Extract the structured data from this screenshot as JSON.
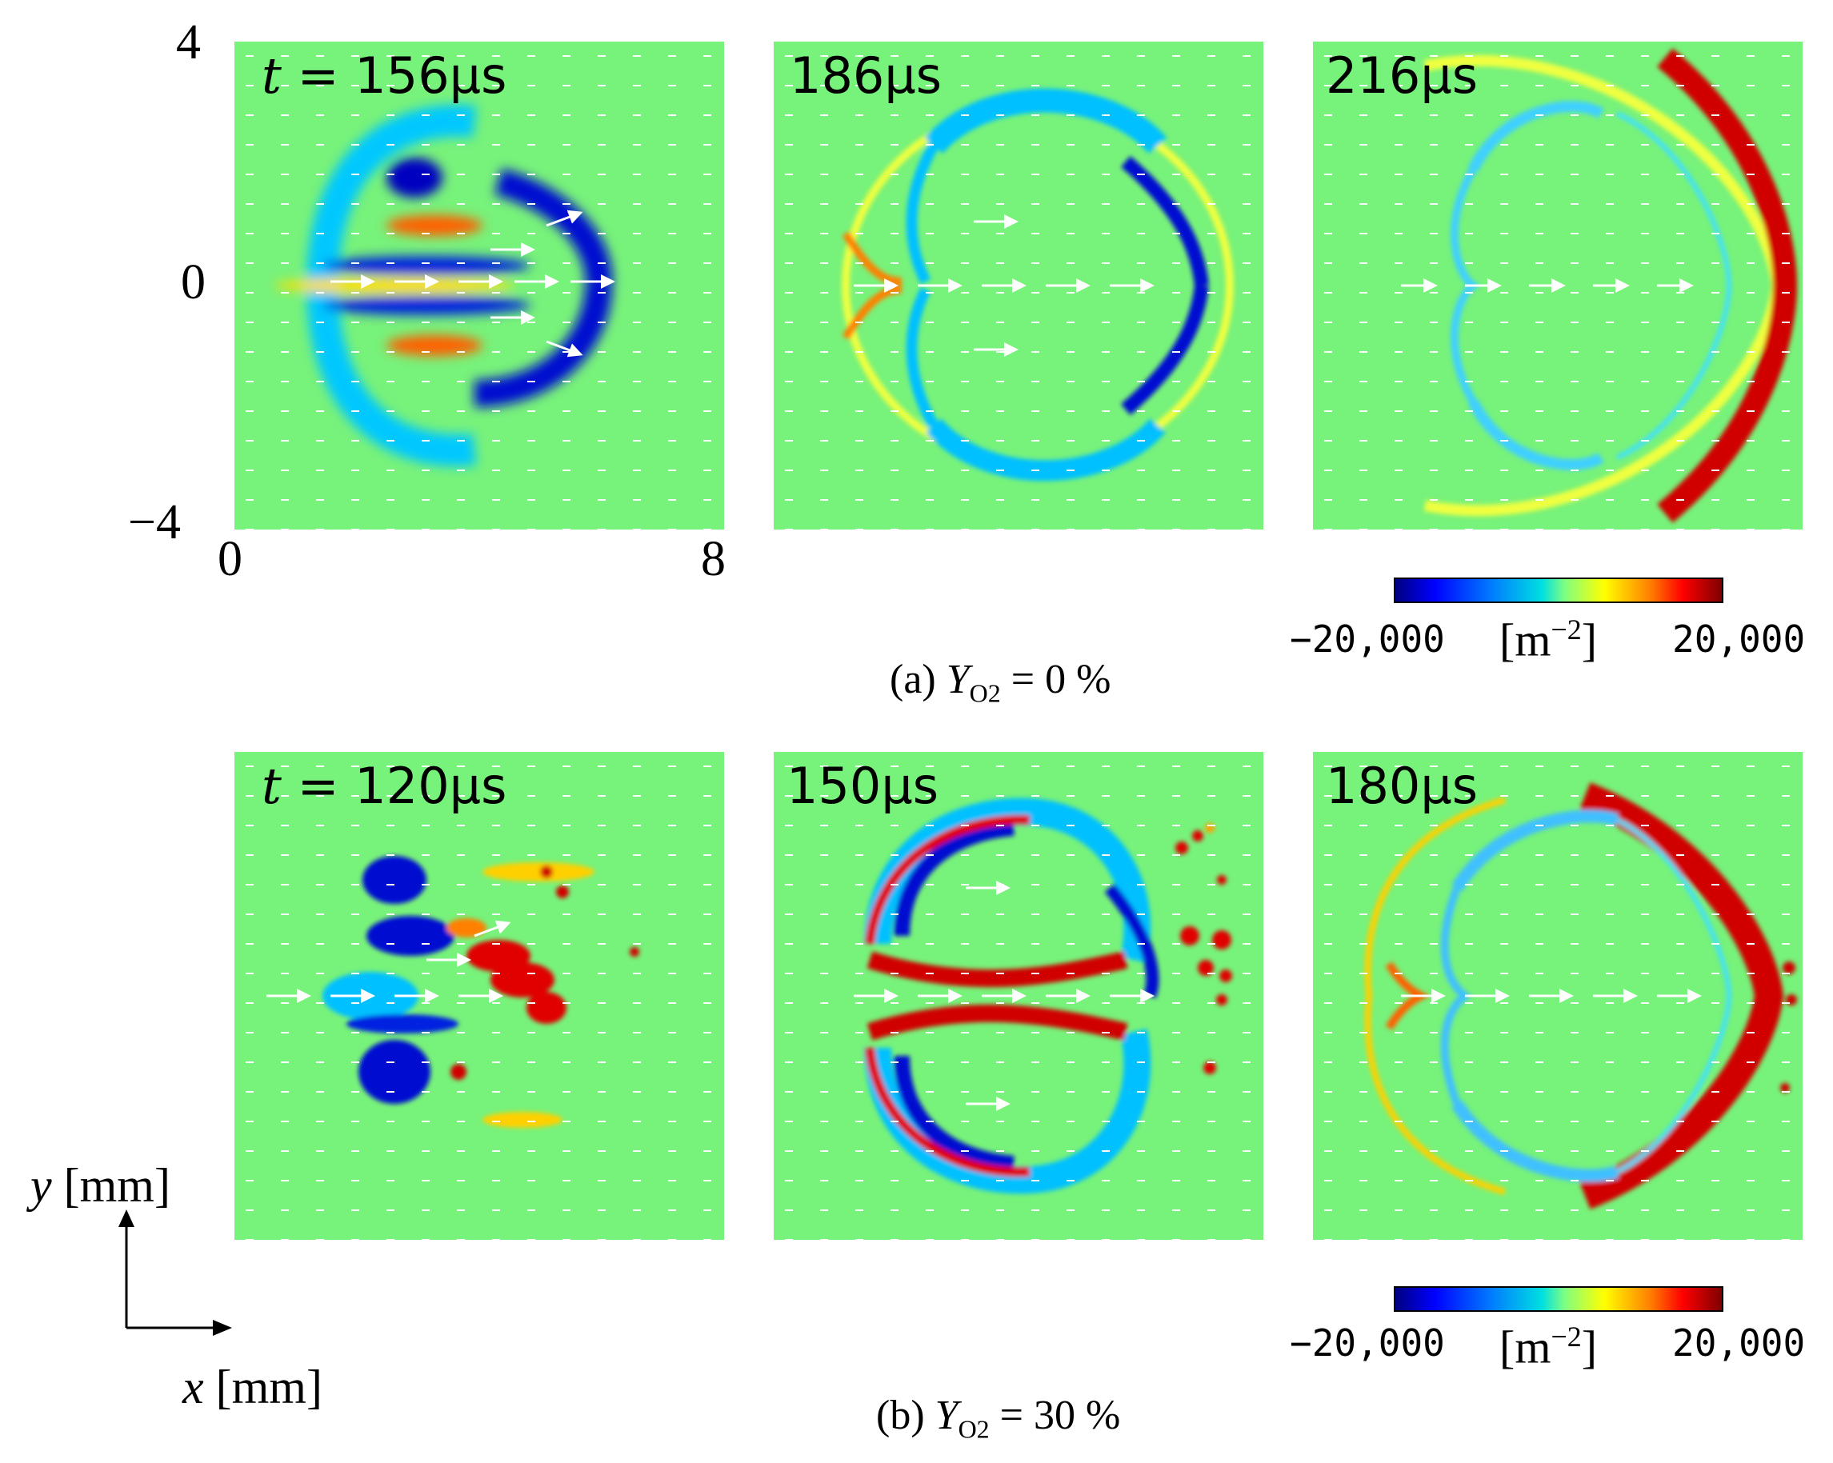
{
  "figure": {
    "panel_labels": {
      "a1": {
        "var": "t",
        "eq": " = ",
        "time": "156μs"
      },
      "a2": "186μs",
      "a3": "216μs",
      "b1": {
        "var": "t",
        "eq": " = ",
        "time": "120μs"
      },
      "b2": "150μs",
      "b3": "180μs"
    },
    "axes": {
      "y_max": "4",
      "y_zero": "0",
      "y_min": "−4",
      "x_min": "0",
      "x_max": "8",
      "x_label": {
        "var": "x",
        "unit": " [mm]"
      },
      "y_label": {
        "var": "y",
        "unit": " [mm]"
      }
    },
    "colorbar": {
      "min": "−20,000",
      "max": "20,000",
      "unit_open": "[m",
      "unit_exp": "−2",
      "unit_close": "]"
    },
    "captions": {
      "a": {
        "prefix": "(a) ",
        "var": "Y",
        "sub": "O2",
        "suffix": " = 0 %"
      },
      "b": {
        "prefix": "(b) ",
        "var": "Y",
        "sub": "O2",
        "suffix": " = 30 %"
      }
    },
    "colors": {
      "background": "#77f27a",
      "arrow": "#ffffff"
    }
  }
}
